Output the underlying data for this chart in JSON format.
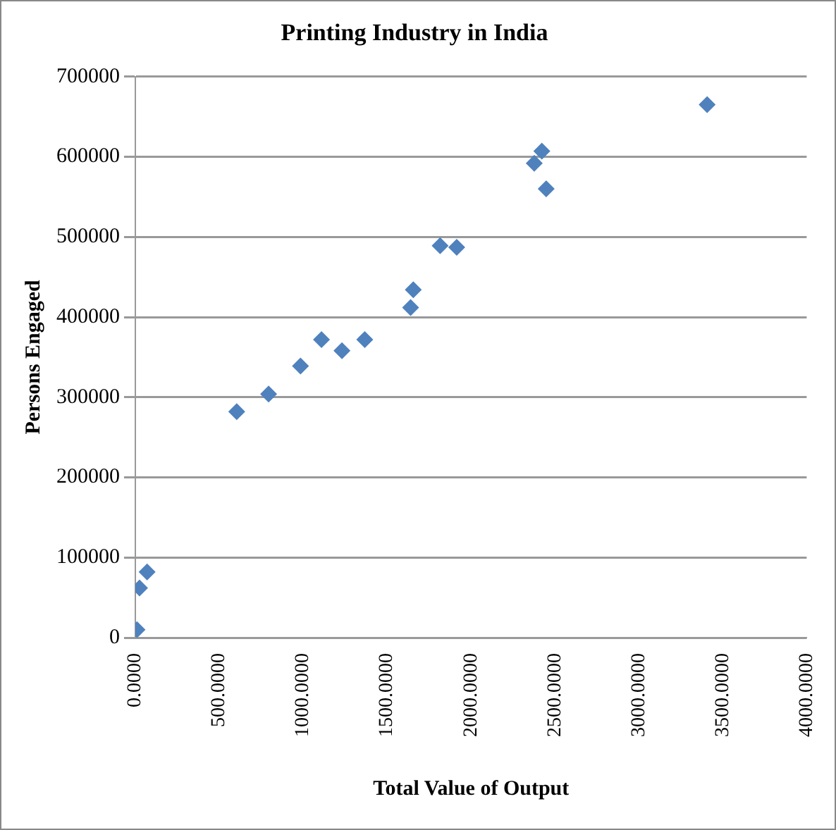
{
  "chart_data": {
    "type": "scatter",
    "title": "Printing Industry in India",
    "xlabel": "Total Value of Output",
    "ylabel": "Persons Engaged",
    "x": [
      10,
      25,
      70,
      604,
      794,
      984,
      1109,
      1231,
      1367,
      1640,
      1656,
      1816,
      1915,
      2377,
      2422,
      2448,
      3407
    ],
    "values": [
      10000,
      62000,
      82000,
      282000,
      304000,
      339000,
      372000,
      358000,
      372000,
      412000,
      434000,
      489000,
      487000,
      592000,
      607000,
      560000,
      665000
    ],
    "color": "#4f81bd",
    "marker": "diamond",
    "grid": "y",
    "legend": false,
    "xlim": [
      0,
      4000
    ],
    "xticks": [
      {
        "value": 0,
        "label": "0.0000"
      },
      {
        "value": 500,
        "label": "500.0000"
      },
      {
        "value": 1000,
        "label": "1000.0000"
      },
      {
        "value": 1500,
        "label": "1500.0000"
      },
      {
        "value": 2000,
        "label": "2000.0000"
      },
      {
        "value": 2500,
        "label": "2500.0000"
      },
      {
        "value": 3000,
        "label": "3000.0000"
      },
      {
        "value": 3500,
        "label": "3500.0000"
      },
      {
        "value": 4000,
        "label": "4000.0000"
      }
    ],
    "ylim": [
      0,
      700000
    ],
    "yticks": [
      0,
      100000,
      200000,
      300000,
      400000,
      500000,
      600000,
      700000
    ]
  }
}
